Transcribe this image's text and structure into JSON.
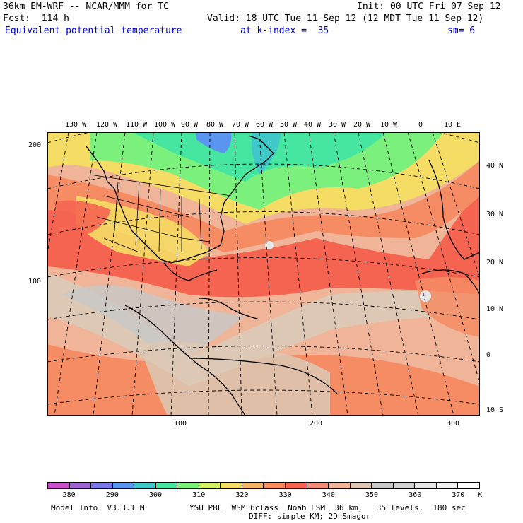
{
  "header": {
    "left1": "36km EM-WRF -- NCAR/MMM for TC",
    "left2": "Fcst:  114 h",
    "right1": "Init: 00 UTC Fri 07 Sep 12",
    "right2": "Valid: 18 UTC Tue 11 Sep 12 (12 MDT Tue 11 Sep 12)",
    "field": "Equivalent potential temperature",
    "level": "at k-index =  35",
    "smooth": "sm= 6"
  },
  "lon_labels": [
    "130 W",
    "120 W",
    "110 W",
    "100 W",
    "90 W",
    "80 W",
    "70 W",
    "60 W",
    "50 W",
    "40 W",
    "30 W",
    "20 W",
    "10 W",
    "0",
    "10 E"
  ],
  "lat_labels": [
    "40 N",
    "30 N",
    "20 N",
    "10 N",
    "0",
    "10 S"
  ],
  "grid_y_labels": [
    "200",
    "100"
  ],
  "grid_x_labels": [
    "100",
    "200",
    "300"
  ],
  "colorbar": {
    "labels": [
      "280",
      "290",
      "300",
      "310",
      "320",
      "330",
      "340",
      "350",
      "360",
      "370"
    ],
    "unit": "K",
    "colors": [
      "#c850c8",
      "#a064d2",
      "#7878e6",
      "#5a96f0",
      "#40c8c8",
      "#46e6a0",
      "#7cf07c",
      "#d2f064",
      "#f5dc64",
      "#f5b464",
      "#f58c64",
      "#f56450",
      "#f08c78",
      "#f0b498",
      "#dcc8b4",
      "#c8c8c8",
      "#d2d2d2",
      "#e6e6e6",
      "#f0f0f0",
      "#ffffff"
    ]
  },
  "footer": {
    "model": "Model Info: V3.3.1 M",
    "physics": "YSU PBL  WSM 6class  Noah LSM  36 km,   35 levels,  180 sec",
    "diff": "DIFF: simple KM; 2D Smagor"
  }
}
